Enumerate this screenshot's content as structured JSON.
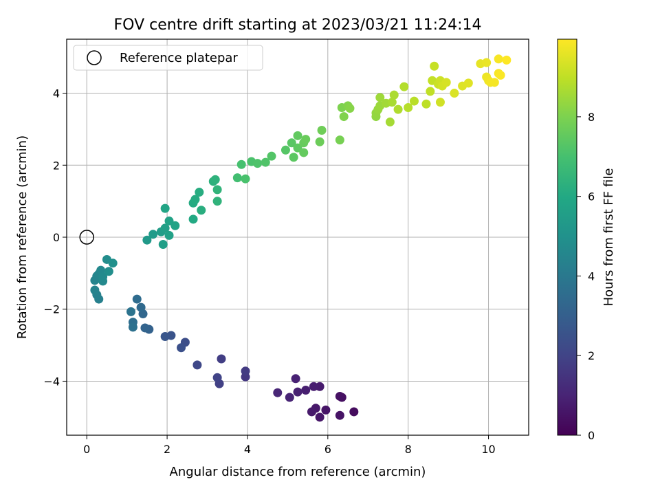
{
  "chart_data": {
    "type": "scatter",
    "title": "FOV centre drift starting at 2023/03/21 11:24:14",
    "xlabel": "Angular distance from reference (arcmin)",
    "ylabel": "Rotation from reference (arcmin)",
    "xlim": [
      -0.5,
      11
    ],
    "ylim": [
      -5.5,
      5.5
    ],
    "xticks": [
      0,
      2,
      4,
      6,
      8,
      10
    ],
    "yticks": [
      -4,
      -2,
      0,
      2,
      4
    ],
    "grid": true,
    "legend": {
      "placement": "top-left",
      "entries": [
        {
          "label": "Reference platepar",
          "marker": "open-circle"
        }
      ]
    },
    "reference_point": {
      "x": 0,
      "y": 0
    },
    "colorbar": {
      "label": "Hours from first FF file",
      "colormap": "viridis",
      "range": [
        0,
        9.95
      ],
      "ticks": [
        0,
        2,
        4,
        6,
        8
      ]
    },
    "points": [
      [
        6.65,
        -4.85,
        0.3
      ],
      [
        6.35,
        -4.45,
        0.4
      ],
      [
        6.3,
        -4.42,
        0.45
      ],
      [
        6.3,
        -4.95,
        0.5
      ],
      [
        5.95,
        -4.8,
        0.55
      ],
      [
        5.8,
        -5.0,
        0.6
      ],
      [
        5.7,
        -4.75,
        0.65
      ],
      [
        5.6,
        -4.85,
        0.7
      ],
      [
        5.8,
        -4.15,
        0.75
      ],
      [
        5.65,
        -4.15,
        0.8
      ],
      [
        5.45,
        -4.25,
        0.85
      ],
      [
        5.25,
        -4.3,
        0.9
      ],
      [
        5.2,
        -3.93,
        0.95
      ],
      [
        5.05,
        -4.45,
        1.0
      ],
      [
        4.75,
        -4.32,
        1.05
      ],
      [
        3.95,
        -3.88,
        1.6
      ],
      [
        3.95,
        -3.72,
        1.7
      ],
      [
        3.35,
        -3.38,
        1.8
      ],
      [
        3.3,
        -4.07,
        1.9
      ],
      [
        3.25,
        -3.9,
        2.0
      ],
      [
        2.75,
        -3.55,
        2.15
      ],
      [
        2.45,
        -2.92,
        2.35
      ],
      [
        2.35,
        -3.07,
        2.45
      ],
      [
        2.1,
        -2.73,
        2.55
      ],
      [
        1.95,
        -2.76,
        2.65
      ],
      [
        1.55,
        -2.56,
        3.1
      ],
      [
        1.45,
        -2.52,
        3.2
      ],
      [
        1.4,
        -2.13,
        3.3
      ],
      [
        1.35,
        -1.95,
        3.4
      ],
      [
        1.25,
        -1.72,
        3.5
      ],
      [
        1.15,
        -2.36,
        3.6
      ],
      [
        1.15,
        -2.5,
        3.7
      ],
      [
        1.1,
        -2.07,
        3.8
      ],
      [
        0.3,
        -1.72,
        4.3
      ],
      [
        0.25,
        -1.6,
        4.35
      ],
      [
        0.2,
        -1.47,
        4.4
      ],
      [
        0.2,
        -1.2,
        4.45
      ],
      [
        0.25,
        -1.08,
        4.5
      ],
      [
        0.3,
        -1.02,
        4.55
      ],
      [
        0.35,
        -0.92,
        4.6
      ],
      [
        0.4,
        -1.22,
        4.65
      ],
      [
        0.4,
        -1.1,
        4.7
      ],
      [
        0.5,
        -0.62,
        4.8
      ],
      [
        0.55,
        -0.95,
        4.85
      ],
      [
        0.65,
        -0.72,
        4.95
      ],
      [
        1.5,
        -0.08,
        5.3
      ],
      [
        1.65,
        0.08,
        5.4
      ],
      [
        1.85,
        0.15,
        5.5
      ],
      [
        1.9,
        -0.2,
        5.55
      ],
      [
        1.95,
        0.25,
        5.6
      ],
      [
        2.05,
        0.05,
        5.65
      ],
      [
        2.05,
        0.45,
        5.7
      ],
      [
        2.2,
        0.32,
        5.75
      ],
      [
        1.95,
        0.8,
        5.8
      ],
      [
        2.65,
        0.5,
        6.0
      ],
      [
        2.65,
        0.95,
        6.05
      ],
      [
        2.7,
        1.05,
        6.1
      ],
      [
        2.8,
        1.25,
        6.15
      ],
      [
        2.85,
        0.75,
        6.2
      ],
      [
        3.15,
        1.55,
        6.3
      ],
      [
        3.2,
        1.6,
        6.35
      ],
      [
        3.25,
        1.0,
        6.4
      ],
      [
        3.25,
        1.32,
        6.45
      ],
      [
        3.75,
        1.65,
        6.9
      ],
      [
        3.85,
        2.02,
        7.0
      ],
      [
        3.95,
        1.62,
        7.05
      ],
      [
        4.1,
        2.1,
        7.1
      ],
      [
        4.25,
        2.05,
        7.15
      ],
      [
        4.45,
        2.08,
        7.2
      ],
      [
        4.6,
        2.25,
        7.25
      ],
      [
        4.95,
        2.42,
        7.3
      ],
      [
        5.1,
        2.62,
        7.35
      ],
      [
        5.15,
        2.22,
        7.4
      ],
      [
        5.25,
        2.48,
        7.45
      ],
      [
        5.25,
        2.82,
        7.5
      ],
      [
        5.4,
        2.35,
        7.55
      ],
      [
        5.4,
        2.62,
        7.6
      ],
      [
        5.45,
        2.72,
        7.65
      ],
      [
        5.8,
        2.65,
        7.7
      ],
      [
        5.85,
        2.97,
        7.75
      ],
      [
        6.3,
        2.7,
        7.9
      ],
      [
        6.35,
        3.6,
        8.0
      ],
      [
        6.4,
        3.35,
        8.05
      ],
      [
        6.5,
        3.65,
        8.1
      ],
      [
        6.55,
        3.58,
        8.15
      ],
      [
        7.2,
        3.35,
        8.3
      ],
      [
        7.2,
        3.45,
        8.35
      ],
      [
        7.25,
        3.55,
        8.4
      ],
      [
        7.3,
        3.65,
        8.45
      ],
      [
        7.3,
        3.88,
        8.5
      ],
      [
        7.45,
        3.72,
        8.55
      ],
      [
        7.55,
        3.2,
        8.6
      ],
      [
        7.6,
        3.75,
        8.65
      ],
      [
        7.65,
        3.95,
        8.7
      ],
      [
        7.75,
        3.55,
        8.75
      ],
      [
        7.9,
        4.18,
        8.8
      ],
      [
        8.0,
        3.6,
        8.85
      ],
      [
        8.15,
        3.78,
        8.9
      ],
      [
        8.45,
        3.7,
        8.95
      ],
      [
        8.55,
        4.05,
        9.0
      ],
      [
        8.6,
        4.35,
        9.05
      ],
      [
        8.65,
        4.75,
        9.1
      ],
      [
        8.75,
        4.25,
        9.15
      ],
      [
        8.8,
        4.35,
        9.2
      ],
      [
        8.8,
        3.75,
        9.25
      ],
      [
        8.85,
        4.2,
        9.3
      ],
      [
        8.95,
        4.3,
        9.35
      ],
      [
        9.15,
        4.0,
        9.4
      ],
      [
        9.35,
        4.2,
        9.45
      ],
      [
        9.5,
        4.28,
        9.5
      ],
      [
        9.8,
        4.82,
        9.6
      ],
      [
        9.95,
        4.85,
        9.65
      ],
      [
        9.95,
        4.45,
        9.7
      ],
      [
        10.0,
        4.35,
        9.75
      ],
      [
        10.05,
        4.3,
        9.8
      ],
      [
        10.15,
        4.3,
        9.82
      ],
      [
        10.25,
        4.95,
        9.85
      ],
      [
        10.25,
        4.55,
        9.88
      ],
      [
        10.3,
        4.5,
        9.9
      ],
      [
        10.45,
        4.92,
        9.95
      ]
    ]
  }
}
